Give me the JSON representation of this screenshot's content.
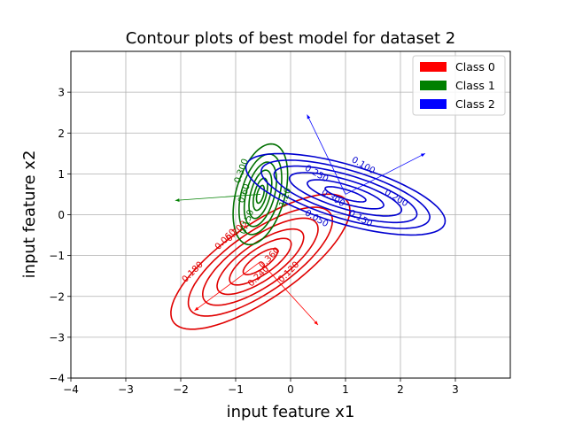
{
  "chart_data": {
    "type": "contour",
    "title": "Contour plots of best model for dataset 2",
    "xlabel": "input feature x1",
    "ylabel": "input feature x2",
    "xlim": [
      -4,
      4
    ],
    "ylim": [
      -4,
      4
    ],
    "xticks": [
      "−4",
      "−3",
      "−2",
      "−1",
      "0",
      "1",
      "2",
      "3"
    ],
    "yticks": [
      "−4",
      "−3",
      "−2",
      "−1",
      "0",
      "1",
      "2",
      "3"
    ],
    "xtick_values": [
      -4,
      -3,
      -2,
      -1,
      0,
      1,
      2,
      3
    ],
    "ytick_values": [
      -4,
      -3,
      -2,
      -1,
      0,
      1,
      2,
      3
    ],
    "grid": true,
    "legend_position": "top-right",
    "series": [
      {
        "name": "Class 0",
        "color": "#ff0000",
        "contour_color": "#e00000",
        "mean": [
          -0.55,
          -1.15
        ],
        "axes_dirs": [
          [
            0.7,
            0.714
          ],
          [
            -0.714,
            0.7
          ]
        ],
        "ellipse_semi_axes": [
          [
            0.42,
            0.15
          ],
          [
            0.75,
            0.28
          ],
          [
            1.05,
            0.4
          ],
          [
            1.4,
            0.53
          ],
          [
            1.75,
            0.66
          ],
          [
            2.18,
            0.8
          ]
        ],
        "contour_labels": [
          {
            "text": "0.180",
            "at": [
              -1.75,
              -1.45
            ]
          },
          {
            "text": "0.060",
            "at": [
              -1.15,
              -0.65
            ]
          },
          {
            "text": "0.200",
            "at": [
              -0.95,
              -0.45
            ]
          },
          {
            "text": "0.360",
            "at": [
              -0.35,
              -1.1
            ]
          },
          {
            "text": "0.120",
            "at": [
              0.0,
              -1.45
            ]
          },
          {
            "text": "0.240",
            "at": [
              -0.55,
              -1.55
            ]
          }
        ],
        "arrows": [
          {
            "from": [
              -0.55,
              -1.15
            ],
            "to": [
              -1.75,
              -2.35
            ]
          },
          {
            "from": [
              -0.55,
              -1.15
            ],
            "to": [
              0.5,
              -2.7
            ]
          }
        ]
      },
      {
        "name": "Class 1",
        "color": "#008000",
        "contour_color": "#007000",
        "mean": [
          -0.55,
          0.5
        ],
        "axes_dirs": [
          [
            0.18,
            0.984
          ],
          [
            -0.984,
            0.18
          ]
        ],
        "ellipse_semi_axes": [
          [
            0.22,
            0.06
          ],
          [
            0.4,
            0.11
          ],
          [
            0.6,
            0.18
          ],
          [
            0.8,
            0.26
          ],
          [
            1.0,
            0.35
          ],
          [
            1.25,
            0.45
          ]
        ],
        "contour_labels": [
          {
            "text": "0.300",
            "at": [
              -0.85,
              1.05
            ]
          },
          {
            "text": "0.60",
            "at": [
              -0.8,
              0.5
            ]
          },
          {
            "text": "0.150",
            "at": [
              -0.75,
              -0.2
            ]
          },
          {
            "text": "1.20",
            "at": [
              -0.05,
              0.4
            ]
          }
        ],
        "arrows": [
          {
            "from": [
              -0.55,
              0.5
            ],
            "to": [
              -2.1,
              0.35
            ]
          }
        ]
      },
      {
        "name": "Class 2",
        "color": "#0000ff",
        "contour_color": "#0000d0",
        "mean": [
          1.0,
          0.5
        ],
        "axes_dirs": [
          [
            0.92,
            -0.39
          ],
          [
            0.39,
            0.92
          ]
        ],
        "ellipse_semi_axes": [
          [
            0.4,
            0.11
          ],
          [
            0.75,
            0.22
          ],
          [
            1.1,
            0.34
          ],
          [
            1.4,
            0.46
          ],
          [
            1.65,
            0.58
          ],
          [
            1.95,
            0.7
          ]
        ],
        "contour_labels": [
          {
            "text": "0.250",
            "at": [
              0.45,
              0.95
            ]
          },
          {
            "text": "0.100",
            "at": [
              1.3,
              1.15
            ]
          },
          {
            "text": "0.300",
            "at": [
              0.75,
              0.35
            ]
          },
          {
            "text": "0.200",
            "at": [
              1.9,
              0.35
            ]
          },
          {
            "text": "0.050",
            "at": [
              0.45,
              -0.15
            ]
          },
          {
            "text": "0.150",
            "at": [
              1.25,
              -0.15
            ]
          }
        ],
        "arrows": [
          {
            "from": [
              1.0,
              0.5
            ],
            "to": [
              0.3,
              2.45
            ]
          },
          {
            "from": [
              1.0,
              0.5
            ],
            "to": [
              2.45,
              1.5
            ]
          }
        ]
      }
    ]
  }
}
